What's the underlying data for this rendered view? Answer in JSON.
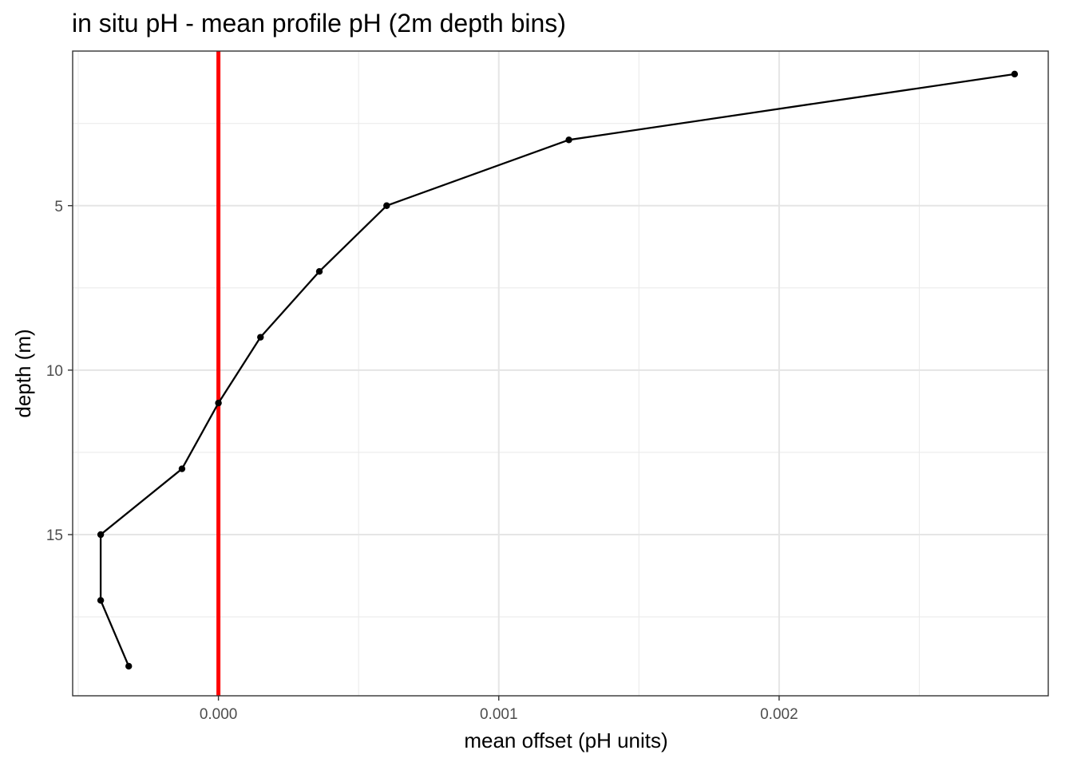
{
  "chart_data": {
    "type": "line",
    "title": "in situ pH - mean profile pH (2m depth bins)",
    "xlabel": "mean offset (pH units)",
    "ylabel": "depth (m)",
    "xlim": [
      -0.00052,
      0.00296
    ],
    "ylim": [
      0.3,
      19.9
    ],
    "y_reversed": true,
    "x_ticks": [
      {
        "value": 0,
        "label": "0.000"
      },
      {
        "value": 0.001,
        "label": "0.001"
      },
      {
        "value": 0.002,
        "label": "0.002"
      }
    ],
    "x_minor_ticks": [
      -0.0005,
      0.0005,
      0.0015,
      0.0025
    ],
    "y_ticks": [
      {
        "value": 5,
        "label": "5"
      },
      {
        "value": 10,
        "label": "10"
      },
      {
        "value": 15,
        "label": "15"
      }
    ],
    "y_minor_ticks": [
      2.5,
      7.5,
      12.5,
      17.5
    ],
    "grid": true,
    "reference_line": {
      "x": 0,
      "color": "#ff0000"
    },
    "line_color": "#000000",
    "series": [
      {
        "x": [
          0.00284,
          0.00125,
          0.0006,
          0.00036,
          0.00015,
          0.0,
          -0.00013,
          -0.00042,
          -0.00042,
          -0.00032
        ],
        "y": [
          1,
          3,
          5,
          7,
          9,
          11,
          13,
          15,
          17,
          19
        ]
      }
    ]
  }
}
